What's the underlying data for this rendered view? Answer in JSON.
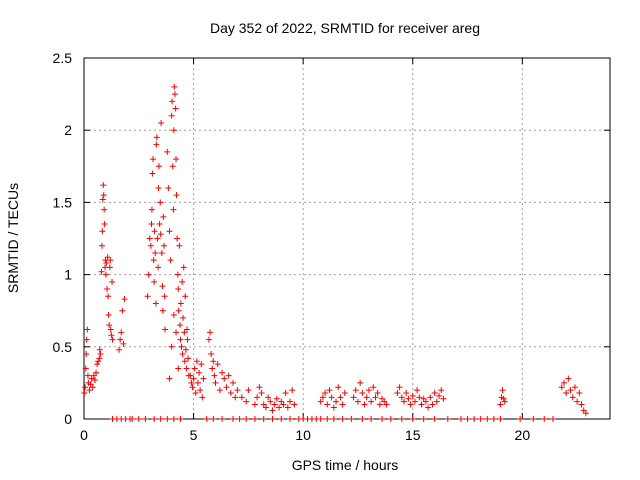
{
  "chart_data": {
    "type": "scatter",
    "title": "Day 352 of 2022, SRMTID for receiver areg",
    "xlabel": "GPS time / hours",
    "ylabel": "SRMTID / TECUs",
    "xlim": [
      0,
      24
    ],
    "ylim": [
      0,
      2.5
    ],
    "xticks": [
      0,
      5,
      10,
      15,
      20
    ],
    "yticks": [
      0,
      0.5,
      1,
      1.5,
      2,
      2.5
    ],
    "xtick_labels": [
      "0",
      "5",
      "10",
      "15",
      "20"
    ],
    "ytick_labels": [
      "0",
      "0.5",
      "1",
      "1.5",
      "2",
      "2.5"
    ],
    "grid": true,
    "marker": "+",
    "series": [
      {
        "name": "SRMTID",
        "color": "#ff0000",
        "points": [
          [
            0.02,
            0.18
          ],
          [
            0.05,
            0.22
          ],
          [
            0.08,
            0.35
          ],
          [
            0.1,
            0.45
          ],
          [
            0.12,
            0.55
          ],
          [
            0.15,
            0.62
          ],
          [
            0.18,
            0.3
          ],
          [
            0.2,
            0.25
          ],
          [
            0.25,
            0.2
          ],
          [
            0.3,
            0.24
          ],
          [
            0.35,
            0.28
          ],
          [
            0.4,
            0.22
          ],
          [
            0.45,
            0.3
          ],
          [
            0.5,
            0.27
          ],
          [
            0.55,
            0.32
          ],
          [
            0.6,
            0.38
          ],
          [
            0.65,
            0.4
          ],
          [
            0.7,
            0.42
          ],
          [
            0.72,
            0.48
          ],
          [
            0.75,
            0.45
          ],
          [
            0.8,
            1.02
          ],
          [
            0.82,
            1.2
          ],
          [
            0.84,
            1.3
          ],
          [
            0.86,
            1.52
          ],
          [
            0.88,
            1.62
          ],
          [
            0.9,
            1.55
          ],
          [
            0.92,
            1.45
          ],
          [
            0.94,
            1.35
          ],
          [
            0.96,
            1.05
          ],
          [
            0.98,
            1.1
          ],
          [
            1.0,
            1.0
          ],
          [
            1.02,
            1.08
          ],
          [
            1.05,
            0.9
          ],
          [
            1.08,
            1.12
          ],
          [
            1.1,
            0.85
          ],
          [
            1.12,
            0.72
          ],
          [
            1.15,
            0.65
          ],
          [
            1.18,
            1.05
          ],
          [
            1.2,
            1.1
          ],
          [
            1.22,
            0.62
          ],
          [
            1.25,
            0.58
          ],
          [
            1.28,
            0.95
          ],
          [
            1.3,
            0.55
          ],
          [
            1.6,
            0.48
          ],
          [
            1.65,
            0.55
          ],
          [
            1.7,
            0.6
          ],
          [
            1.75,
            0.75
          ],
          [
            1.8,
            0.52
          ],
          [
            1.85,
            0.83
          ],
          [
            2.9,
            0.85
          ],
          [
            2.95,
            1.0
          ],
          [
            3.0,
            1.25
          ],
          [
            3.05,
            1.2
          ],
          [
            3.08,
            1.35
          ],
          [
            3.1,
            1.45
          ],
          [
            3.12,
            1.7
          ],
          [
            3.15,
            1.8
          ],
          [
            3.18,
            1.1
          ],
          [
            3.2,
            0.95
          ],
          [
            3.22,
            1.3
          ],
          [
            3.25,
            1.15
          ],
          [
            3.28,
            0.8
          ],
          [
            3.3,
            1.9
          ],
          [
            3.32,
            1.95
          ],
          [
            3.35,
            1.25
          ],
          [
            3.38,
            1.05
          ],
          [
            3.4,
            1.6
          ],
          [
            3.42,
            1.75
          ],
          [
            3.45,
            1.35
          ],
          [
            3.48,
            1.5
          ],
          [
            3.5,
            1.28
          ],
          [
            3.52,
            2.05
          ],
          [
            3.55,
            1.15
          ],
          [
            3.58,
            0.92
          ],
          [
            3.6,
            0.75
          ],
          [
            3.62,
            1.4
          ],
          [
            3.65,
            1.2
          ],
          [
            3.68,
            0.85
          ],
          [
            3.7,
            0.62
          ],
          [
            3.8,
            1.85
          ],
          [
            3.85,
            1.6
          ],
          [
            3.9,
            1.3
          ],
          [
            3.95,
            1.1
          ],
          [
            4.0,
            2.1
          ],
          [
            4.02,
            2.2
          ],
          [
            4.05,
            1.75
          ],
          [
            4.08,
            1.45
          ],
          [
            4.1,
            2.0
          ],
          [
            4.12,
            2.3
          ],
          [
            4.15,
            2.25
          ],
          [
            4.18,
            2.15
          ],
          [
            4.2,
            1.8
          ],
          [
            4.22,
            1.55
          ],
          [
            4.25,
            1.25
          ],
          [
            4.28,
            1.0
          ],
          [
            4.3,
            0.9
          ],
          [
            4.32,
            0.75
          ],
          [
            4.35,
            1.2
          ],
          [
            4.38,
            0.65
          ],
          [
            4.4,
            0.55
          ],
          [
            4.42,
            0.8
          ],
          [
            4.45,
            0.5
          ],
          [
            4.48,
            0.95
          ],
          [
            4.5,
            0.45
          ],
          [
            4.52,
            0.7
          ],
          [
            4.55,
            1.05
          ],
          [
            4.58,
            0.6
          ],
          [
            4.6,
            0.4
          ],
          [
            4.62,
            0.85
          ],
          [
            4.65,
            0.48
          ],
          [
            4.68,
            0.35
          ],
          [
            4.7,
            0.62
          ],
          [
            4.72,
            0.55
          ],
          [
            4.75,
            0.42
          ],
          [
            4.78,
            0.3
          ],
          [
            3.9,
            0.28
          ],
          [
            4.0,
            0.5
          ],
          [
            4.1,
            0.72
          ],
          [
            4.2,
            0.6
          ],
          [
            4.3,
            0.35
          ],
          [
            4.85,
            0.3
          ],
          [
            4.9,
            0.25
          ],
          [
            4.95,
            0.22
          ],
          [
            5.0,
            0.28
          ],
          [
            5.05,
            0.35
          ],
          [
            5.1,
            0.18
          ],
          [
            5.15,
            0.4
          ],
          [
            5.2,
            0.25
          ],
          [
            5.25,
            0.32
          ],
          [
            5.3,
            0.2
          ],
          [
            5.35,
            0.38
          ],
          [
            5.4,
            0.15
          ],
          [
            5.45,
            0.28
          ],
          [
            5.7,
            0.55
          ],
          [
            5.75,
            0.6
          ],
          [
            5.8,
            0.45
          ],
          [
            5.85,
            0.35
          ],
          [
            5.9,
            0.4
          ],
          [
            5.95,
            0.3
          ],
          [
            6.0,
            0.25
          ],
          [
            6.1,
            0.38
          ],
          [
            6.2,
            0.2
          ],
          [
            6.3,
            0.32
          ],
          [
            6.4,
            0.28
          ],
          [
            6.5,
            0.22
          ],
          [
            6.6,
            0.3
          ],
          [
            6.7,
            0.18
          ],
          [
            6.8,
            0.25
          ],
          [
            6.9,
            0.15
          ],
          [
            7.0,
            0.2
          ],
          [
            7.2,
            0.15
          ],
          [
            7.4,
            0.12
          ],
          [
            7.5,
            0.2
          ],
          [
            7.8,
            0.1
          ],
          [
            7.9,
            0.15
          ],
          [
            8.0,
            0.22
          ],
          [
            8.1,
            0.18
          ],
          [
            8.2,
            0.1
          ],
          [
            8.3,
            0.08
          ],
          [
            8.4,
            0.15
          ],
          [
            8.5,
            0.12
          ],
          [
            8.6,
            0.06
          ],
          [
            8.7,
            0.1
          ],
          [
            8.8,
            0.14
          ],
          [
            8.9,
            0.08
          ],
          [
            9.0,
            0.12
          ],
          [
            9.1,
            0.1
          ],
          [
            9.2,
            0.18
          ],
          [
            9.3,
            0.08
          ],
          [
            9.4,
            0.12
          ],
          [
            9.5,
            0.2
          ],
          [
            9.6,
            0.1
          ],
          [
            10.8,
            0.12
          ],
          [
            10.9,
            0.15
          ],
          [
            11.0,
            0.18
          ],
          [
            11.1,
            0.1
          ],
          [
            11.2,
            0.2
          ],
          [
            11.3,
            0.15
          ],
          [
            11.4,
            0.08
          ],
          [
            11.5,
            0.12
          ],
          [
            11.6,
            0.22
          ],
          [
            11.7,
            0.15
          ],
          [
            11.8,
            0.1
          ],
          [
            11.9,
            0.18
          ],
          [
            12.3,
            0.15
          ],
          [
            12.4,
            0.2
          ],
          [
            12.5,
            0.12
          ],
          [
            12.6,
            0.25
          ],
          [
            12.7,
            0.18
          ],
          [
            12.8,
            0.1
          ],
          [
            12.9,
            0.15
          ],
          [
            13.0,
            0.2
          ],
          [
            13.1,
            0.12
          ],
          [
            13.2,
            0.22
          ],
          [
            13.3,
            0.15
          ],
          [
            13.4,
            0.18
          ],
          [
            13.5,
            0.1
          ],
          [
            13.6,
            0.14
          ],
          [
            13.7,
            0.12
          ],
          [
            13.8,
            0.1
          ],
          [
            14.3,
            0.18
          ],
          [
            14.4,
            0.22
          ],
          [
            14.5,
            0.15
          ],
          [
            14.6,
            0.12
          ],
          [
            14.7,
            0.18
          ],
          [
            14.8,
            0.14
          ],
          [
            14.9,
            0.1
          ],
          [
            15.0,
            0.16
          ],
          [
            15.1,
            0.12
          ],
          [
            15.2,
            0.2
          ],
          [
            15.3,
            0.15
          ],
          [
            15.4,
            0.1
          ],
          [
            15.5,
            0.14
          ],
          [
            15.6,
            0.12
          ],
          [
            15.7,
            0.08
          ],
          [
            15.8,
            0.15
          ],
          [
            15.9,
            0.1
          ],
          [
            16.0,
            0.18
          ],
          [
            16.1,
            0.12
          ],
          [
            16.2,
            0.16
          ],
          [
            16.3,
            0.2
          ],
          [
            16.4,
            0.14
          ],
          [
            19.0,
            0.1
          ],
          [
            19.05,
            0.15
          ],
          [
            19.1,
            0.2
          ],
          [
            19.15,
            0.14
          ],
          [
            19.2,
            0.12
          ],
          [
            21.8,
            0.22
          ],
          [
            21.9,
            0.25
          ],
          [
            22.0,
            0.18
          ],
          [
            22.1,
            0.28
          ],
          [
            22.2,
            0.2
          ],
          [
            22.3,
            0.15
          ],
          [
            22.4,
            0.22
          ],
          [
            22.5,
            0.12
          ],
          [
            22.6,
            0.18
          ],
          [
            22.7,
            0.1
          ],
          [
            22.8,
            0.06
          ],
          [
            22.9,
            0.04
          ]
        ],
        "zero_markers": [
          1.3,
          1.5,
          1.7,
          1.9,
          2.1,
          2.2,
          2.5,
          2.8,
          3.2,
          3.5,
          3.8,
          4.1,
          4.4,
          5.6,
          5.9,
          6.3,
          6.8,
          7.1,
          7.4,
          7.8,
          8.2,
          8.6,
          9.0,
          9.4,
          9.8,
          10.0,
          10.2,
          10.4,
          10.6,
          10.8,
          11.1,
          11.4,
          11.8,
          12.2,
          12.7,
          13.1,
          13.6,
          14.0,
          14.5,
          15.0,
          15.5,
          16.0,
          16.6,
          17.2,
          17.5,
          17.8,
          18.1,
          18.4,
          18.7,
          19.0,
          19.9,
          20.5,
          21.0,
          21.4
        ]
      }
    ]
  }
}
